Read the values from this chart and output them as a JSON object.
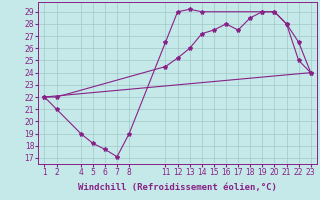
{
  "background_color": "#c5e8e8",
  "grid_color": "#a0c8c8",
  "line_color": "#882288",
  "x_ticks": [
    1,
    2,
    4,
    5,
    6,
    7,
    8,
    11,
    12,
    13,
    14,
    15,
    16,
    17,
    18,
    19,
    20,
    21,
    22,
    23
  ],
  "xlabel": "Windchill (Refroidissement éolien,°C)",
  "ylabel_ticks": [
    17,
    18,
    19,
    20,
    21,
    22,
    23,
    24,
    25,
    26,
    27,
    28,
    29
  ],
  "ylim": [
    16.5,
    29.8
  ],
  "xlim": [
    0.5,
    23.5
  ],
  "line1_x": [
    1,
    2,
    4,
    5,
    6,
    7,
    8,
    11,
    12,
    13,
    14,
    19,
    20,
    21,
    22,
    23
  ],
  "line1_y": [
    22.0,
    21.0,
    19.0,
    18.2,
    17.7,
    17.1,
    19.0,
    26.5,
    29.0,
    29.2,
    29.0,
    29.0,
    29.0,
    28.0,
    25.0,
    24.0
  ],
  "line2_x": [
    1,
    2,
    11,
    12,
    13,
    14,
    15,
    16,
    17,
    18,
    19,
    20,
    21,
    22,
    23
  ],
  "line2_y": [
    22.0,
    22.0,
    24.5,
    25.2,
    26.0,
    27.2,
    27.5,
    28.0,
    27.5,
    28.5,
    29.0,
    29.0,
    28.0,
    26.5,
    24.0
  ],
  "line3_x": [
    1,
    23
  ],
  "line3_y": [
    22.0,
    24.0
  ],
  "marker": "*",
  "marker_size": 3,
  "linewidth": 0.8,
  "tick_fontsize": 5.5,
  "xlabel_fontsize": 6.5,
  "fig_width": 3.2,
  "fig_height": 2.0,
  "dpi": 100
}
